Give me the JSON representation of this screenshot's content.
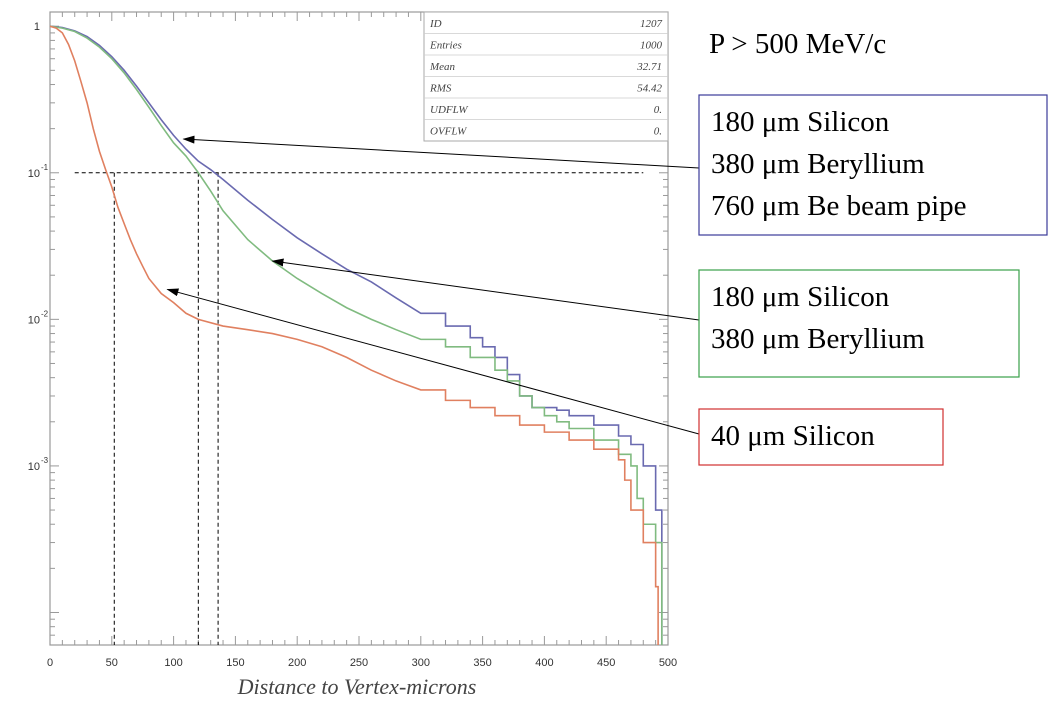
{
  "chart_data": {
    "type": "line",
    "xlabel": "Distance to Vertex-microns",
    "ylabel": "",
    "title": "",
    "xlim": [
      0,
      500
    ],
    "ylim": [
      6e-05,
      1.25
    ],
    "yscale": "log",
    "x_ticks": [
      0,
      50,
      100,
      150,
      200,
      250,
      300,
      350,
      400,
      450,
      500
    ],
    "y_ticks": [
      {
        "value": 1,
        "base": "1",
        "exp": ""
      },
      {
        "value": 0.1,
        "base": "10",
        "exp": "-1"
      },
      {
        "value": 0.01,
        "base": "10",
        "exp": "-2"
      },
      {
        "value": 0.001,
        "base": "10",
        "exp": "-3"
      }
    ],
    "grid": false,
    "series": [
      {
        "name": "",
        "color": "#6a6ab0",
        "x": [
          0,
          10,
          20,
          30,
          40,
          50,
          60,
          70,
          80,
          90,
          100,
          110,
          120,
          130,
          140,
          160,
          180,
          200,
          220,
          240,
          260,
          280,
          300,
          320,
          340,
          350,
          360,
          370,
          380,
          390,
          400,
          410,
          420,
          440,
          460,
          470,
          480,
          490,
          495
        ],
        "values": [
          1,
          0.98,
          0.93,
          0.85,
          0.74,
          0.62,
          0.5,
          0.39,
          0.3,
          0.23,
          0.18,
          0.145,
          0.12,
          0.105,
          0.09,
          0.065,
          0.048,
          0.036,
          0.028,
          0.022,
          0.018,
          0.014,
          0.011,
          0.009,
          0.0075,
          0.0065,
          0.0055,
          0.0042,
          0.003,
          0.0025,
          0.0025,
          0.0024,
          0.0022,
          0.0019,
          0.0016,
          0.0014,
          0.001,
          0.0005,
          0.00015
        ]
      },
      {
        "name": "",
        "color": "#80bb80",
        "x": [
          0,
          10,
          20,
          30,
          40,
          50,
          60,
          70,
          80,
          90,
          100,
          110,
          120,
          130,
          140,
          160,
          180,
          200,
          220,
          240,
          260,
          280,
          300,
          320,
          340,
          360,
          370,
          380,
          390,
          400,
          410,
          420,
          440,
          460,
          470,
          475,
          480,
          490,
          495
        ],
        "values": [
          1,
          0.97,
          0.92,
          0.83,
          0.72,
          0.6,
          0.48,
          0.37,
          0.28,
          0.21,
          0.16,
          0.13,
          0.1,
          0.075,
          0.055,
          0.035,
          0.025,
          0.019,
          0.015,
          0.012,
          0.01,
          0.0085,
          0.0073,
          0.0065,
          0.0055,
          0.0045,
          0.0038,
          0.003,
          0.0025,
          0.0022,
          0.002,
          0.0018,
          0.0015,
          0.0012,
          0.001,
          0.0006,
          0.0004,
          0.0003,
          0.0001
        ]
      },
      {
        "name": "",
        "color": "#e08060",
        "x": [
          0,
          5,
          10,
          15,
          20,
          25,
          30,
          35,
          40,
          45,
          50,
          55,
          60,
          65,
          70,
          75,
          80,
          90,
          100,
          110,
          120,
          140,
          160,
          180,
          200,
          220,
          240,
          260,
          280,
          300,
          320,
          340,
          360,
          380,
          400,
          420,
          440,
          460,
          465,
          470,
          480,
          490,
          492
        ],
        "values": [
          1,
          0.97,
          0.9,
          0.75,
          0.58,
          0.42,
          0.3,
          0.2,
          0.14,
          0.105,
          0.08,
          0.058,
          0.045,
          0.035,
          0.028,
          0.023,
          0.019,
          0.015,
          0.013,
          0.011,
          0.01,
          0.009,
          0.0085,
          0.008,
          0.0073,
          0.0065,
          0.0055,
          0.0045,
          0.0038,
          0.0033,
          0.0028,
          0.0025,
          0.0022,
          0.0019,
          0.0017,
          0.0015,
          0.0013,
          0.0011,
          0.0008,
          0.0005,
          0.0003,
          0.00015,
          8e-05
        ]
      }
    ],
    "reference_lines": {
      "y_value": 0.1,
      "x_range": [
        20,
        480
      ],
      "x_drops": [
        52,
        120,
        136
      ]
    },
    "stats_box": [
      {
        "label": "ID",
        "value": "1207"
      },
      {
        "label": "Entries",
        "value": "1000"
      },
      {
        "label": "Mean",
        "value": "32.71"
      },
      {
        "label": "RMS",
        "value": "54.42"
      },
      {
        "label": "UDFLW",
        "value": "0."
      },
      {
        "label": "OVFLW",
        "value": "0."
      }
    ],
    "annotations": [
      {
        "key": "momentum",
        "lines": [
          "P > 500 MeV/c"
        ],
        "border": "",
        "arrow_to": null
      },
      {
        "key": "blue",
        "lines": [
          "180 μm Silicon",
          "380 μm Beryllium",
          "760 μm Be beam pipe"
        ],
        "border": "#3b3b9a",
        "arrow_to": {
          "x": 108,
          "y": 0.17
        }
      },
      {
        "key": "green",
        "lines": [
          "180 μm Silicon",
          "380 μm Beryllium"
        ],
        "border": "#3aa04a",
        "arrow_to": {
          "x": 180,
          "y": 0.025
        }
      },
      {
        "key": "red",
        "lines": [
          "40 μm Silicon"
        ],
        "border": "#d03030",
        "arrow_to": {
          "x": 95,
          "y": 0.016
        }
      }
    ]
  }
}
